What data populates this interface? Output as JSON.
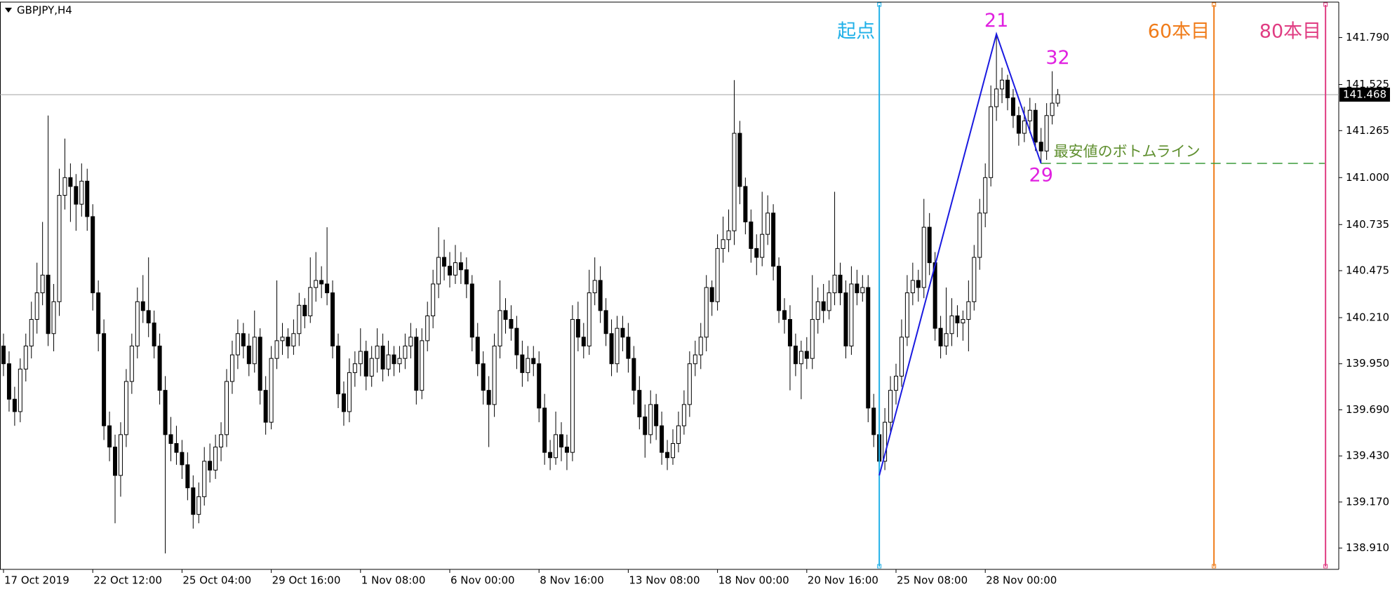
{
  "chart_data": {
    "type": "candlestick",
    "title": "GBPJPY,H4",
    "up_color": "#ffffff",
    "down_color": "#000000",
    "outline_color": "#000000",
    "ylim": [
      138.79,
      141.99
    ],
    "yticks": [
      {
        "value": 141.79,
        "label": "141.790"
      },
      141.525,
      141.265,
      {
        "value": 141.0,
        "label": "141.000"
      },
      140.735,
      140.475,
      {
        "value": 140.21,
        "label": "140.210"
      },
      {
        "value": 139.95,
        "label": "139.950"
      },
      {
        "value": 139.69,
        "label": "139.690"
      },
      {
        "value": 139.43,
        "label": "139.430"
      },
      {
        "value": 139.17,
        "label": "139.170"
      },
      {
        "value": 138.91,
        "label": "138.910"
      }
    ],
    "categories": [
      "17 Oct 2019",
      null,
      null,
      null,
      null,
      null,
      null,
      null,
      null,
      null,
      null,
      null,
      null,
      null,
      null,
      null,
      "22 Oct 12:00",
      null,
      null,
      null,
      null,
      null,
      null,
      null,
      null,
      null,
      null,
      null,
      null,
      null,
      null,
      null,
      "25 Oct 04:00",
      null,
      null,
      null,
      null,
      null,
      null,
      null,
      null,
      null,
      null,
      null,
      null,
      null,
      null,
      null,
      "29 Oct 16:00",
      null,
      null,
      null,
      null,
      null,
      null,
      null,
      null,
      null,
      null,
      null,
      null,
      null,
      null,
      null,
      "1 Nov 08:00",
      null,
      null,
      null,
      null,
      null,
      null,
      null,
      null,
      null,
      null,
      null,
      null,
      null,
      null,
      null,
      "6 Nov 00:00",
      null,
      null,
      null,
      null,
      null,
      null,
      null,
      null,
      null,
      null,
      null,
      null,
      null,
      null,
      null,
      "8 Nov 16:00",
      null,
      null,
      null,
      null,
      null,
      null,
      null,
      null,
      null,
      null,
      null,
      null,
      null,
      null,
      null,
      "13 Nov 08:00",
      null,
      null,
      null,
      null,
      null,
      null,
      null,
      null,
      null,
      null,
      null,
      null,
      null,
      null,
      null,
      "18 Nov 00:00",
      null,
      null,
      null,
      null,
      null,
      null,
      null,
      null,
      null,
      null,
      null,
      null,
      null,
      null,
      null,
      "20 Nov 16:00",
      null,
      null,
      null,
      null,
      null,
      null,
      null,
      null,
      null,
      null,
      null,
      null,
      null,
      null,
      null,
      "25 Nov 08:00",
      null,
      null,
      null,
      null,
      null,
      null,
      null,
      null,
      null,
      null,
      null,
      null,
      null,
      null,
      null,
      "28 Nov 00:00",
      null,
      null,
      null,
      null,
      null,
      null,
      null,
      null,
      null,
      null,
      null,
      null,
      null
    ],
    "ohlc": [
      [
        140.05,
        140.12,
        139.88,
        139.95
      ],
      [
        139.95,
        140.02,
        139.68,
        139.75
      ],
      [
        139.75,
        139.82,
        139.6,
        139.68
      ],
      [
        139.68,
        139.98,
        139.62,
        139.92
      ],
      [
        139.92,
        140.12,
        139.85,
        140.05
      ],
      [
        140.05,
        140.3,
        139.98,
        140.2
      ],
      [
        140.2,
        140.52,
        140.12,
        140.35
      ],
      [
        140.35,
        140.75,
        140.28,
        140.45
      ],
      [
        140.45,
        141.35,
        140.05,
        140.12
      ],
      [
        140.12,
        140.4,
        140.02,
        140.3
      ],
      [
        140.3,
        141.05,
        140.22,
        140.9
      ],
      [
        140.9,
        141.22,
        140.82,
        141.0
      ],
      [
        141.0,
        141.08,
        140.75,
        140.95
      ],
      [
        140.95,
        141.02,
        140.7,
        140.85
      ],
      [
        140.85,
        141.08,
        140.78,
        140.98
      ],
      [
        140.98,
        141.05,
        140.7,
        140.78
      ],
      [
        140.78,
        140.85,
        140.25,
        140.35
      ],
      [
        140.35,
        140.42,
        140.02,
        140.12
      ],
      [
        140.12,
        140.2,
        139.52,
        139.6
      ],
      [
        139.6,
        139.68,
        139.4,
        139.48
      ],
      [
        139.48,
        139.55,
        139.05,
        139.32
      ],
      [
        139.32,
        139.62,
        139.2,
        139.55
      ],
      [
        139.55,
        139.92,
        139.48,
        139.85
      ],
      [
        139.85,
        140.12,
        139.78,
        140.05
      ],
      [
        140.05,
        140.38,
        139.98,
        140.3
      ],
      [
        140.3,
        140.45,
        140.18,
        140.25
      ],
      [
        140.25,
        140.55,
        140.1,
        140.18
      ],
      [
        140.18,
        140.25,
        139.98,
        140.05
      ],
      [
        140.05,
        140.12,
        139.72,
        139.8
      ],
      [
        139.8,
        139.88,
        138.88,
        139.55
      ],
      [
        139.55,
        139.65,
        139.4,
        139.5
      ],
      [
        139.5,
        139.6,
        139.38,
        139.45
      ],
      [
        139.45,
        139.52,
        139.3,
        139.38
      ],
      [
        139.38,
        139.45,
        139.18,
        139.25
      ],
      [
        139.25,
        139.32,
        139.02,
        139.1
      ],
      [
        139.1,
        139.28,
        139.05,
        139.2
      ],
      [
        139.2,
        139.48,
        139.15,
        139.4
      ],
      [
        139.4,
        139.5,
        139.28,
        139.35
      ],
      [
        139.35,
        139.55,
        139.3,
        139.48
      ],
      [
        139.48,
        139.62,
        139.4,
        139.55
      ],
      [
        139.55,
        139.92,
        139.48,
        139.85
      ],
      [
        139.85,
        140.08,
        139.78,
        140.0
      ],
      [
        140.0,
        140.2,
        139.92,
        140.12
      ],
      [
        140.12,
        140.18,
        139.98,
        140.05
      ],
      [
        140.05,
        140.12,
        139.88,
        139.95
      ],
      [
        139.95,
        140.25,
        139.9,
        140.1
      ],
      [
        140.1,
        140.15,
        139.72,
        139.8
      ],
      [
        139.8,
        139.88,
        139.55,
        139.62
      ],
      [
        139.62,
        140.05,
        139.58,
        139.98
      ],
      [
        139.98,
        140.42,
        139.92,
        140.08
      ],
      [
        140.08,
        140.18,
        140.0,
        140.1
      ],
      [
        140.1,
        140.15,
        139.98,
        140.05
      ],
      [
        140.05,
        140.2,
        140.0,
        140.12
      ],
      [
        140.12,
        140.35,
        140.05,
        140.28
      ],
      [
        140.28,
        140.32,
        140.15,
        140.22
      ],
      [
        140.22,
        140.55,
        140.18,
        140.38
      ],
      [
        140.38,
        140.58,
        140.3,
        140.42
      ],
      [
        140.42,
        140.5,
        140.32,
        140.4
      ],
      [
        140.4,
        140.72,
        140.28,
        140.35
      ],
      [
        140.35,
        140.42,
        139.98,
        140.05
      ],
      [
        140.05,
        140.12,
        139.7,
        139.78
      ],
      [
        139.78,
        139.85,
        139.6,
        139.68
      ],
      [
        139.68,
        139.98,
        139.62,
        139.9
      ],
      [
        139.9,
        140.02,
        139.82,
        139.95
      ],
      [
        139.95,
        140.15,
        139.88,
        140.02
      ],
      [
        140.02,
        140.08,
        139.8,
        139.88
      ],
      [
        139.88,
        140.05,
        139.82,
        139.98
      ],
      [
        139.98,
        140.15,
        139.9,
        140.05
      ],
      [
        140.05,
        140.12,
        139.85,
        139.92
      ],
      [
        139.92,
        140.08,
        139.88,
        140.0
      ],
      [
        140.0,
        140.05,
        139.88,
        139.95
      ],
      [
        139.95,
        140.05,
        139.9,
        139.98
      ],
      [
        139.98,
        140.12,
        139.92,
        140.05
      ],
      [
        140.05,
        140.18,
        139.98,
        140.1
      ],
      [
        140.1,
        140.15,
        139.72,
        139.8
      ],
      [
        139.8,
        140.15,
        139.75,
        140.08
      ],
      [
        140.08,
        140.3,
        140.02,
        140.22
      ],
      [
        140.22,
        140.48,
        140.15,
        140.4
      ],
      [
        140.4,
        140.72,
        140.32,
        140.55
      ],
      [
        140.55,
        140.65,
        140.42,
        140.5
      ],
      [
        140.5,
        140.58,
        140.38,
        140.45
      ],
      [
        140.45,
        140.62,
        140.4,
        140.52
      ],
      [
        140.52,
        140.58,
        140.4,
        140.48
      ],
      [
        140.48,
        140.55,
        140.32,
        140.4
      ],
      [
        140.4,
        140.45,
        140.02,
        140.1
      ],
      [
        140.1,
        140.18,
        139.88,
        139.95
      ],
      [
        139.95,
        140.02,
        139.72,
        139.8
      ],
      [
        139.8,
        139.88,
        139.48,
        139.72
      ],
      [
        139.72,
        140.12,
        139.65,
        140.05
      ],
      [
        140.05,
        140.42,
        139.98,
        140.25
      ],
      [
        140.25,
        140.32,
        140.12,
        140.2
      ],
      [
        140.2,
        140.28,
        140.08,
        140.15
      ],
      [
        140.15,
        140.22,
        139.92,
        140.0
      ],
      [
        140.0,
        140.08,
        139.82,
        139.9
      ],
      [
        139.9,
        140.05,
        139.85,
        139.98
      ],
      [
        139.98,
        140.05,
        139.88,
        139.95
      ],
      [
        139.95,
        140.02,
        139.62,
        139.7
      ],
      [
        139.7,
        139.78,
        139.38,
        139.45
      ],
      [
        139.45,
        139.52,
        139.35,
        139.42
      ],
      [
        139.42,
        139.68,
        139.38,
        139.55
      ],
      [
        139.55,
        139.62,
        139.4,
        139.48
      ],
      [
        139.48,
        139.55,
        139.35,
        139.45
      ],
      [
        139.45,
        140.28,
        139.4,
        140.2
      ],
      [
        140.2,
        140.3,
        140.02,
        140.1
      ],
      [
        140.1,
        140.18,
        139.98,
        140.05
      ],
      [
        140.05,
        140.48,
        140.0,
        140.35
      ],
      [
        140.35,
        140.55,
        140.28,
        140.42
      ],
      [
        140.42,
        140.5,
        140.18,
        140.25
      ],
      [
        140.25,
        140.32,
        140.05,
        140.12
      ],
      [
        140.12,
        140.2,
        139.88,
        139.95
      ],
      [
        139.95,
        140.22,
        139.9,
        140.15
      ],
      [
        140.15,
        140.22,
        140.02,
        140.1
      ],
      [
        140.1,
        140.18,
        139.9,
        139.98
      ],
      [
        139.98,
        140.05,
        139.72,
        139.8
      ],
      [
        139.8,
        139.88,
        139.58,
        139.65
      ],
      [
        139.65,
        139.72,
        139.42,
        139.55
      ],
      [
        139.55,
        139.8,
        139.5,
        139.72
      ],
      [
        139.72,
        139.78,
        139.52,
        139.6
      ],
      [
        139.6,
        139.68,
        139.38,
        139.45
      ],
      [
        139.45,
        139.52,
        139.35,
        139.42
      ],
      [
        139.42,
        139.58,
        139.38,
        139.5
      ],
      [
        139.5,
        139.68,
        139.45,
        139.6
      ],
      [
        139.6,
        139.8,
        139.55,
        139.72
      ],
      [
        139.72,
        140.02,
        139.65,
        139.95
      ],
      [
        139.95,
        140.08,
        139.88,
        140.0
      ],
      [
        140.0,
        140.18,
        139.92,
        140.1
      ],
      [
        140.1,
        140.45,
        140.02,
        140.38
      ],
      [
        140.38,
        140.42,
        140.22,
        140.3
      ],
      [
        140.3,
        140.68,
        140.25,
        140.6
      ],
      [
        140.6,
        140.78,
        140.52,
        140.65
      ],
      [
        140.65,
        140.82,
        140.58,
        140.7
      ],
      [
        140.7,
        141.55,
        140.62,
        141.25
      ],
      [
        141.25,
        141.32,
        140.85,
        140.95
      ],
      [
        140.95,
        141.0,
        140.68,
        140.75
      ],
      [
        140.75,
        140.82,
        140.52,
        140.6
      ],
      [
        140.6,
        140.68,
        140.45,
        140.55
      ],
      [
        140.55,
        140.92,
        140.5,
        140.68
      ],
      [
        140.68,
        140.9,
        140.62,
        140.8
      ],
      [
        140.8,
        140.85,
        140.42,
        140.5
      ],
      [
        140.5,
        140.55,
        140.18,
        140.25
      ],
      [
        140.25,
        140.32,
        140.12,
        140.2
      ],
      [
        140.2,
        140.28,
        139.8,
        140.05
      ],
      [
        140.05,
        140.12,
        139.88,
        139.95
      ],
      [
        139.95,
        140.08,
        139.75,
        140.02
      ],
      [
        140.02,
        140.1,
        139.92,
        139.98
      ],
      [
        139.98,
        140.45,
        139.92,
        140.2
      ],
      [
        140.2,
        140.38,
        140.12,
        140.3
      ],
      [
        140.3,
        140.4,
        140.18,
        140.25
      ],
      [
        140.25,
        140.42,
        140.2,
        140.35
      ],
      [
        140.35,
        140.92,
        140.28,
        140.45
      ],
      [
        140.45,
        140.52,
        140.28,
        140.35
      ],
      [
        140.35,
        140.42,
        139.98,
        140.05
      ],
      [
        140.05,
        140.5,
        140.0,
        140.4
      ],
      [
        140.4,
        140.48,
        140.28,
        140.35
      ],
      [
        140.35,
        140.45,
        140.3,
        140.38
      ],
      [
        140.38,
        140.45,
        139.62,
        139.7
      ],
      [
        139.7,
        139.78,
        139.48,
        139.55
      ],
      [
        139.55,
        139.62,
        139.32,
        139.4
      ],
      [
        139.4,
        139.7,
        139.35,
        139.62
      ],
      [
        139.62,
        139.88,
        139.55,
        139.8
      ],
      [
        139.8,
        139.95,
        139.72,
        139.88
      ],
      [
        139.88,
        140.2,
        139.82,
        140.1
      ],
      [
        140.1,
        140.45,
        140.05,
        140.35
      ],
      [
        140.35,
        140.52,
        140.28,
        140.42
      ],
      [
        140.42,
        140.48,
        140.3,
        140.38
      ],
      [
        140.38,
        140.88,
        140.32,
        140.72
      ],
      [
        140.72,
        140.8,
        140.45,
        140.52
      ],
      [
        140.52,
        140.58,
        140.08,
        140.15
      ],
      [
        140.15,
        140.22,
        139.98,
        140.05
      ],
      [
        140.05,
        140.38,
        140.0,
        140.12
      ],
      [
        140.12,
        140.32,
        140.05,
        140.22
      ],
      [
        140.22,
        140.28,
        140.1,
        140.18
      ],
      [
        140.18,
        140.25,
        140.08,
        140.2
      ],
      [
        140.2,
        140.42,
        140.02,
        140.3
      ],
      [
        140.3,
        140.62,
        140.25,
        140.55
      ],
      [
        140.55,
        140.88,
        140.48,
        140.8
      ],
      [
        140.8,
        141.08,
        140.72,
        141.0
      ],
      [
        141.0,
        141.52,
        140.95,
        141.4
      ],
      [
        141.4,
        141.81,
        141.32,
        141.5
      ],
      [
        141.5,
        141.62,
        141.42,
        141.55
      ],
      [
        141.55,
        141.58,
        141.38,
        141.45
      ],
      [
        141.45,
        141.5,
        141.28,
        141.35
      ],
      [
        141.35,
        141.4,
        141.18,
        141.25
      ],
      [
        141.25,
        141.4,
        141.2,
        141.32
      ],
      [
        141.32,
        141.45,
        141.25,
        141.38
      ],
      [
        141.38,
        141.42,
        141.15,
        141.2
      ],
      [
        141.2,
        141.28,
        141.08,
        141.15
      ],
      [
        141.15,
        141.42,
        141.1,
        141.35
      ],
      [
        141.35,
        141.6,
        141.3,
        141.42
      ],
      [
        141.42,
        141.5,
        141.4,
        141.468
      ]
    ],
    "current_price": 141.468,
    "current_price_color": "#a0a0a0",
    "zigzag": {
      "color": "#1a1ae0",
      "points": [
        {
          "index": 157,
          "price": 139.32
        },
        {
          "index": 178,
          "price": 141.81
        },
        {
          "index": 186,
          "price": 141.08
        }
      ]
    },
    "annotations": {
      "color": "#e020e0",
      "items": [
        {
          "text": "21",
          "index": 178,
          "price": 141.81,
          "position": "above"
        },
        {
          "text": "29",
          "index": 186,
          "price": 141.08,
          "position": "below"
        },
        {
          "text": "32",
          "index": 189,
          "price": 141.6,
          "position": "above"
        }
      ]
    },
    "vlines": [
      {
        "label": "起点",
        "index": 157,
        "color": "#1fb0e8"
      },
      {
        "label": "60本目",
        "index": 217,
        "color": "#f07c1a"
      },
      {
        "label": "80本目",
        "index": 237,
        "color": "#e03c82"
      }
    ],
    "bottom_line": {
      "label": "最安値のボトムライン",
      "price": 141.08,
      "start_index": 186,
      "color": "#3a9a3a",
      "text_color": "#5f8f2f"
    }
  }
}
